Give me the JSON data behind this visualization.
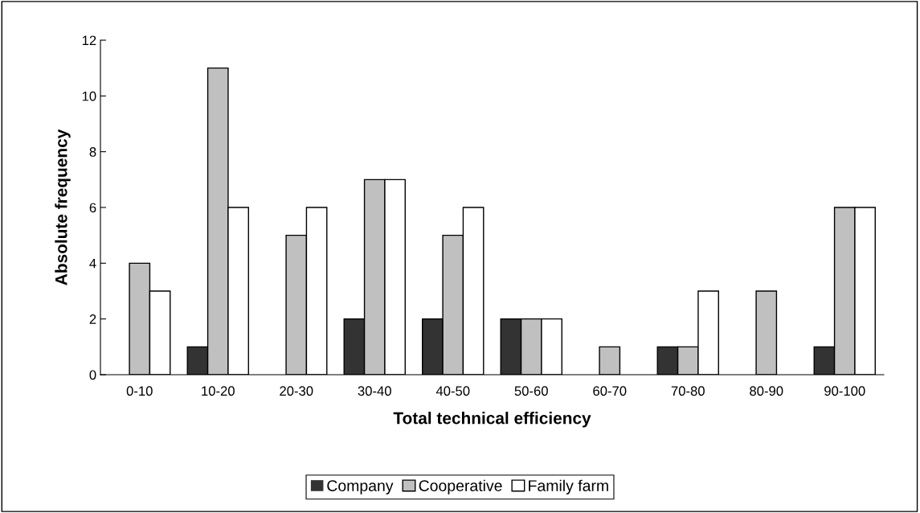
{
  "chart_data": {
    "type": "bar",
    "xlabel": "Total technical efficiency",
    "ylabel": "Absolute frequency",
    "categories": [
      "0-10",
      "10-20",
      "20-30",
      "30-40",
      "40-50",
      "50-60",
      "60-70",
      "70-80",
      "80-90",
      "90-100"
    ],
    "series": [
      {
        "name": "Company",
        "color": "#333333",
        "values": [
          0,
          1,
          0,
          2,
          2,
          2,
          0,
          1,
          0,
          1
        ]
      },
      {
        "name": "Cooperative",
        "color": "#c0c0c0",
        "values": [
          4,
          11,
          5,
          7,
          5,
          2,
          1,
          1,
          3,
          6
        ]
      },
      {
        "name": "Family farm",
        "color": "#ffffff",
        "values": [
          3,
          6,
          6,
          7,
          6,
          2,
          0,
          3,
          0,
          6
        ]
      }
    ],
    "ylim": [
      0,
      12
    ],
    "yticks": [
      0,
      2,
      4,
      6,
      8,
      10,
      12
    ],
    "grid": false,
    "legend": "bottom"
  }
}
